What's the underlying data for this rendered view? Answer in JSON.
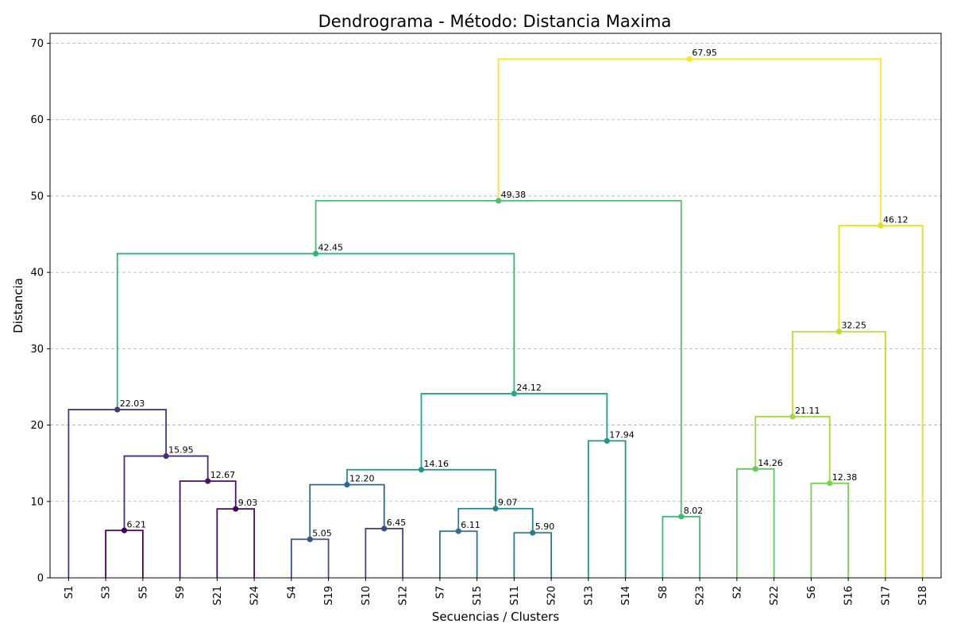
{
  "chart_data": {
    "type": "dendrogram",
    "title": "Dendrograma - Método: Distancia Maxima",
    "xlabel": "Secuencias / Clusters",
    "ylabel": "Distancia",
    "ylim": [
      0,
      71.3
    ],
    "yticks": [
      "0",
      "10",
      "20",
      "30",
      "40",
      "50",
      "60",
      "70"
    ],
    "grid": "horizontal-dashed",
    "leaves": [
      "S1",
      "S3",
      "S5",
      "S9",
      "S21",
      "S24",
      "S4",
      "S19",
      "S10",
      "S12",
      "S7",
      "S15",
      "S11",
      "S20",
      "S13",
      "S14",
      "S8",
      "S23",
      "S2",
      "S22",
      "S6",
      "S16",
      "S17",
      "S18"
    ],
    "merges": [
      {
        "id": "m1",
        "left": "S3",
        "right": "S5",
        "height": 6.21,
        "label": "6.21",
        "color": "#440154"
      },
      {
        "id": "m2",
        "left": "S21",
        "right": "S24",
        "height": 9.03,
        "label": "9.03",
        "color": "#46085c"
      },
      {
        "id": "m3",
        "left": "S9",
        "right": "m2",
        "height": 12.67,
        "label": "12.67",
        "color": "#481467"
      },
      {
        "id": "m4",
        "left": "m1",
        "right": "m3",
        "height": 15.95,
        "label": "15.95",
        "color": "#472d7b"
      },
      {
        "id": "m5",
        "left": "S1",
        "right": "m4",
        "height": 22.03,
        "label": "22.03",
        "color": "#443983"
      },
      {
        "id": "m6",
        "left": "S4",
        "right": "S19",
        "height": 5.05,
        "label": "5.05",
        "color": "#3b528b"
      },
      {
        "id": "m7",
        "left": "S10",
        "right": "S12",
        "height": 6.45,
        "label": "6.45",
        "color": "#3e4989"
      },
      {
        "id": "m8",
        "left": "m6",
        "right": "m7",
        "height": 12.2,
        "label": "12.20",
        "color": "#31688e"
      },
      {
        "id": "m9",
        "left": "S7",
        "right": "S15",
        "height": 6.11,
        "label": "6.11",
        "color": "#2c728e"
      },
      {
        "id": "m10",
        "left": "S11",
        "right": "S20",
        "height": 5.9,
        "label": "5.90",
        "color": "#287c8e"
      },
      {
        "id": "m11",
        "left": "m9",
        "right": "m10",
        "height": 9.07,
        "label": "9.07",
        "color": "#26828e"
      },
      {
        "id": "m12",
        "left": "m8",
        "right": "m11",
        "height": 14.16,
        "label": "14.16",
        "color": "#21918c"
      },
      {
        "id": "m13",
        "left": "S13",
        "right": "S14",
        "height": 17.94,
        "label": "17.94",
        "color": "#1f988b"
      },
      {
        "id": "m14",
        "left": "m12",
        "right": "m13",
        "height": 24.12,
        "label": "24.12",
        "color": "#22a884"
      },
      {
        "id": "m15",
        "left": "m5",
        "right": "m14",
        "height": 42.45,
        "label": "42.45",
        "color": "#2fb47c"
      },
      {
        "id": "m16",
        "left": "S8",
        "right": "S23",
        "height": 8.02,
        "label": "8.02",
        "color": "#3cbb75"
      },
      {
        "id": "m17",
        "left": "m15",
        "right": "m16",
        "height": 49.38,
        "label": "49.38",
        "color": "#4ac16d"
      },
      {
        "id": "m18",
        "left": "S2",
        "right": "S22",
        "height": 14.26,
        "label": "14.26",
        "color": "#5ec962"
      },
      {
        "id": "m19",
        "left": "S6",
        "right": "S16",
        "height": 12.38,
        "label": "12.38",
        "color": "#7ad151"
      },
      {
        "id": "m20",
        "left": "m18",
        "right": "m19",
        "height": 21.11,
        "label": "21.11",
        "color": "#a0da39"
      },
      {
        "id": "m21",
        "left": "m20",
        "right": "S17",
        "height": 32.25,
        "label": "32.25",
        "color": "#bddf26"
      },
      {
        "id": "m22",
        "left": "m21",
        "right": "S18",
        "height": 46.12,
        "label": "46.12",
        "color": "#dfe318"
      },
      {
        "id": "m23",
        "left": "m17",
        "right": "m22",
        "height": 67.95,
        "label": "67.95",
        "color": "#fde725"
      }
    ]
  }
}
